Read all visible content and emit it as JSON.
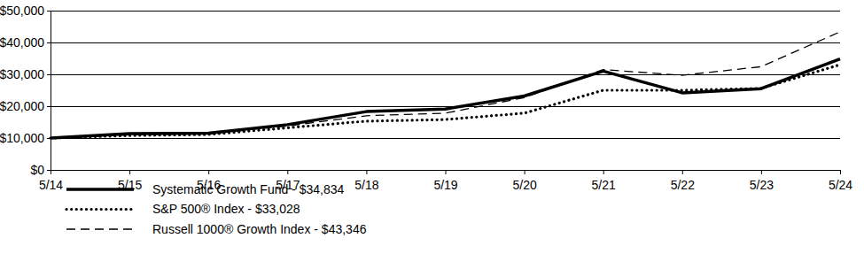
{
  "chart_data": {
    "type": "line",
    "categories": [
      "5/14",
      "5/15",
      "5/16",
      "5/17",
      "5/18",
      "5/19",
      "5/20",
      "5/21",
      "5/22",
      "5/23",
      "5/24"
    ],
    "series": [
      {
        "name": "Systematic Growth Fund - $34,834",
        "color": "#000000",
        "line_style": "solid",
        "values": [
          10000,
          11400,
          11500,
          14200,
          18300,
          19100,
          23200,
          31000,
          24200,
          25500,
          34834
        ]
      },
      {
        "name": "S&P 500® Index - $33,028",
        "color": "#000000",
        "line_style": "dotted",
        "values": [
          10000,
          10800,
          11100,
          13200,
          15300,
          15800,
          17800,
          25000,
          25000,
          25600,
          33028
        ]
      },
      {
        "name": "Russell 1000® Growth Index - $43,346",
        "color": "#000000",
        "line_style": "dashed",
        "values": [
          10000,
          11000,
          11300,
          13800,
          17000,
          17800,
          22700,
          31500,
          29700,
          32400,
          43346
        ]
      }
    ],
    "ylim": [
      0,
      50000
    ],
    "yticks": [
      {
        "value": 0,
        "label": "$0"
      },
      {
        "value": 10000,
        "label": "$10,000"
      },
      {
        "value": 20000,
        "label": "$20,000"
      },
      {
        "value": 30000,
        "label": "$30,000"
      },
      {
        "value": 40000,
        "label": "$40,000"
      },
      {
        "value": 50000,
        "label": "$50,000"
      }
    ],
    "grid": true,
    "legend": "bottom"
  }
}
